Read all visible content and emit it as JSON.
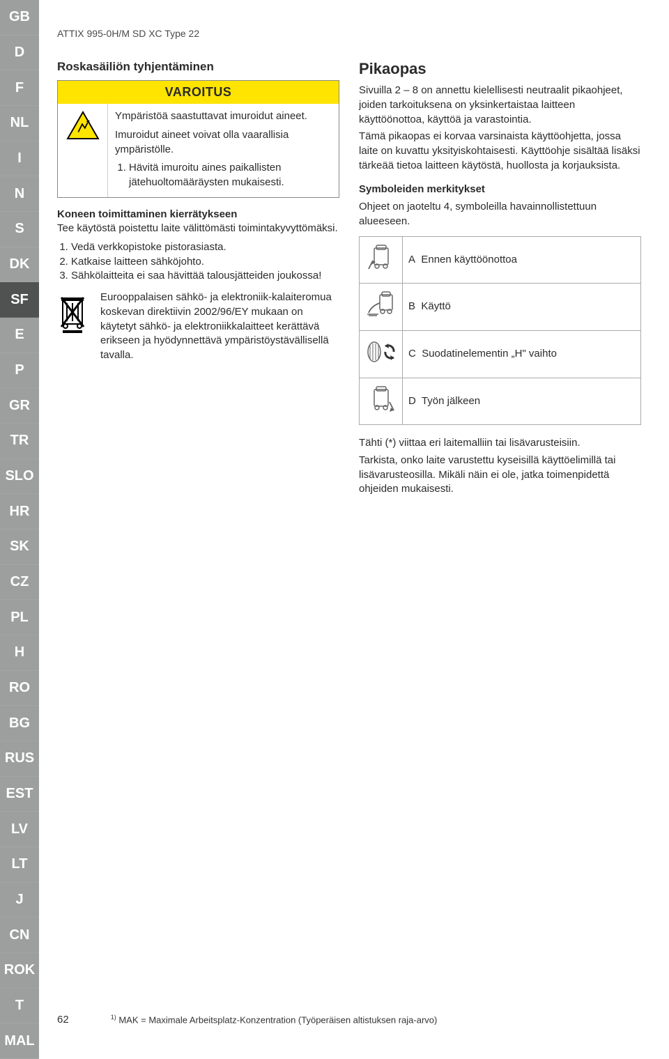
{
  "sidebar": {
    "languages": [
      "GB",
      "D",
      "F",
      "NL",
      "I",
      "N",
      "S",
      "DK",
      "SF",
      "E",
      "P",
      "GR",
      "TR",
      "SLO",
      "HR",
      "SK",
      "CZ",
      "PL",
      "H",
      "RO",
      "BG",
      "RUS",
      "EST",
      "LV",
      "LT",
      "J",
      "CN",
      "ROK",
      "T",
      "MAL"
    ],
    "active": "SF",
    "bg_color": "#9d9f9e",
    "active_bg_color": "#505251",
    "text_color": "#ffffff"
  },
  "header": {
    "doc_title": "ATTIX 995-0H/M SD XC Type 22"
  },
  "left_col": {
    "heading": "Roskasäiliön tyhjentäminen",
    "warning": {
      "label": "VAROITUS",
      "label_bg": "#ffe400",
      "icon_name": "hazard-warning-icon",
      "para1": "Ympäristöä saastuttavat imuroidut aineet.",
      "para2": "Imuroidut aineet voivat olla vaarallisia ympäristölle.",
      "step1": "Hävitä imuroitu aines paikallisten jätehuoltomääräysten mukaisesti."
    },
    "recycle": {
      "title": "Koneen toimittaminen kierrätykseen",
      "intro": "Tee käytöstä poistettu laite välittömästi toimintakyvyttömäksi.",
      "step1": "Vedä verkkopistoke pistorasiasta.",
      "step2": "Katkaise laitteen sähköjohto.",
      "step3": "Sähkölaitteita ei saa hävittää talousjätteiden joukossa!",
      "weee_icon_name": "weee-bin-icon",
      "weee_text": "Eurooppalaisen sähkö- ja elektroniik-kalaiteromua koskevan direktiivin 2002/96/EY mukaan on käytetyt sähkö- ja elektroniikkalaitteet kerättävä erikseen ja hyödynnettävä ympäristöystävällisellä tavalla."
    }
  },
  "right_col": {
    "title": "Pikaopas",
    "para1": "Sivuilla 2 – 8 on annettu kielellisesti neutraalit pikaohjeet, joiden tarkoituksena on yksinkertaistaa laitteen käyttöönottoa, käyttöä ja varastointia.",
    "para2": "Tämä pikaopas ei korvaa varsinaista käyttöohjetta, jossa laite on kuvattu yksityiskohtaisesti. Käyttöohje sisältää lisäksi tärkeää tietoa laitteen käytöstä, huollosta ja korjauksista.",
    "symbols_title": "Symboleiden merkitykset",
    "symbols_intro": "Ohjeet on jaoteltu 4, symboleilla havainnollistettuun alueeseen.",
    "symbol_table": [
      {
        "letter": "A",
        "label": "Ennen käyttöönottoa",
        "icon": "machine-start-icon"
      },
      {
        "letter": "B",
        "label": "Käyttö",
        "icon": "machine-use-icon"
      },
      {
        "letter": "C",
        "label": "Suodatinelementin „H\" vaihto",
        "icon": "filter-change-icon"
      },
      {
        "letter": "D",
        "label": "Työn jälkeen",
        "icon": "machine-after-icon"
      }
    ],
    "note1": "Tähti (*) viittaa eri laitemalliin tai lisävarusteisiin.",
    "note2": "Tarkista, onko laite varustettu kyseisillä käyttöelimillä tai lisävarusteosilla. Mikäli näin ei ole, jatka toimenpidettä ohjeiden mukaisesti."
  },
  "footer": {
    "page": "62",
    "note": "MAK = Maximale Arbeitsplatz-Konzentration (Työperäisen altistuksen raja-arvo)",
    "sup": "1)"
  }
}
